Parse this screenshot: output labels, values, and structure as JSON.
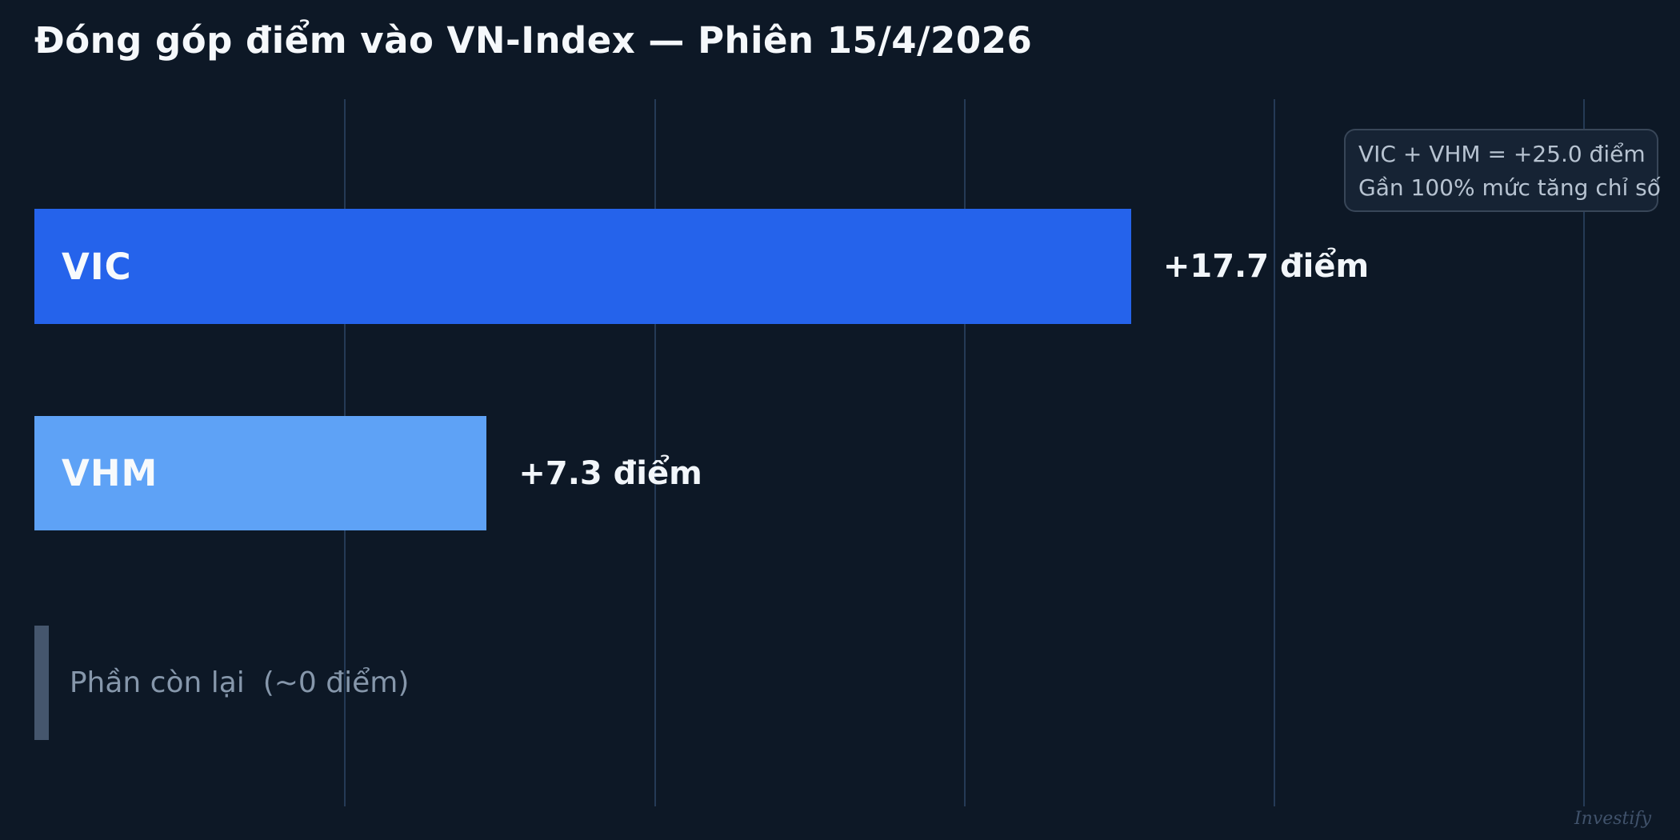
{
  "title": "Đóng góp điểm vào VN-Index — Phiên 15/4/2026",
  "annotation": {
    "line1": "VIC + VHM = +25.0 điểm",
    "line2": "Gần 100% mức tăng chỉ số"
  },
  "watermark": "Investify",
  "colors": {
    "background": "#0d1826",
    "vic_bar": "#2563eb",
    "vhm_bar": "#5ea2f6",
    "remainder_bar": "#45566d",
    "gridline": "rgba(76,115,165,0.38)",
    "title_text": "#f5f8fb",
    "muted_text": "#8697ab",
    "annotation_text": "#b7c3d1"
  },
  "chart_data": {
    "type": "bar",
    "orientation": "horizontal",
    "title": "Đóng góp điểm vào VN-Index — Phiên 15/4/2026",
    "xlabel": "điểm",
    "ylabel": "",
    "xlim": [
      0,
      26.6
    ],
    "x_ticks": [
      5,
      10,
      15,
      20,
      25
    ],
    "grid": "vertical",
    "legend": "none",
    "categories": [
      "VIC",
      "VHM",
      "Phần còn lại"
    ],
    "values": [
      17.7,
      7.3,
      0.2
    ],
    "rows": [
      {
        "name": "VIC",
        "value": 17.7,
        "value_label": "+17.7 điểm",
        "color": "#2563eb",
        "label_inside": true
      },
      {
        "name": "VHM",
        "value": 7.3,
        "value_label": "+7.3 điểm",
        "color": "#5ea2f6",
        "label_inside": true
      },
      {
        "name": "Phần còn lại  (~0 điểm)",
        "value": 0.23,
        "value_label": "",
        "color": "#45566d",
        "label_inside": false
      }
    ],
    "annotations": [
      "VIC + VHM = +25.0 điểm",
      "Gần 100% mức tăng chỉ số"
    ]
  }
}
